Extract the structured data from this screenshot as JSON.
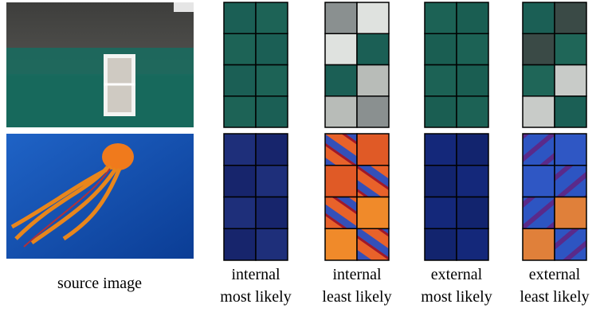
{
  "captions": {
    "source": "source image",
    "columns": [
      {
        "line1": "internal",
        "line2": "most likely"
      },
      {
        "line1": "internal",
        "line2": "least likely"
      },
      {
        "line1": "external",
        "line2": "most likely"
      },
      {
        "line1": "external",
        "line2": "least likely"
      }
    ]
  }
}
